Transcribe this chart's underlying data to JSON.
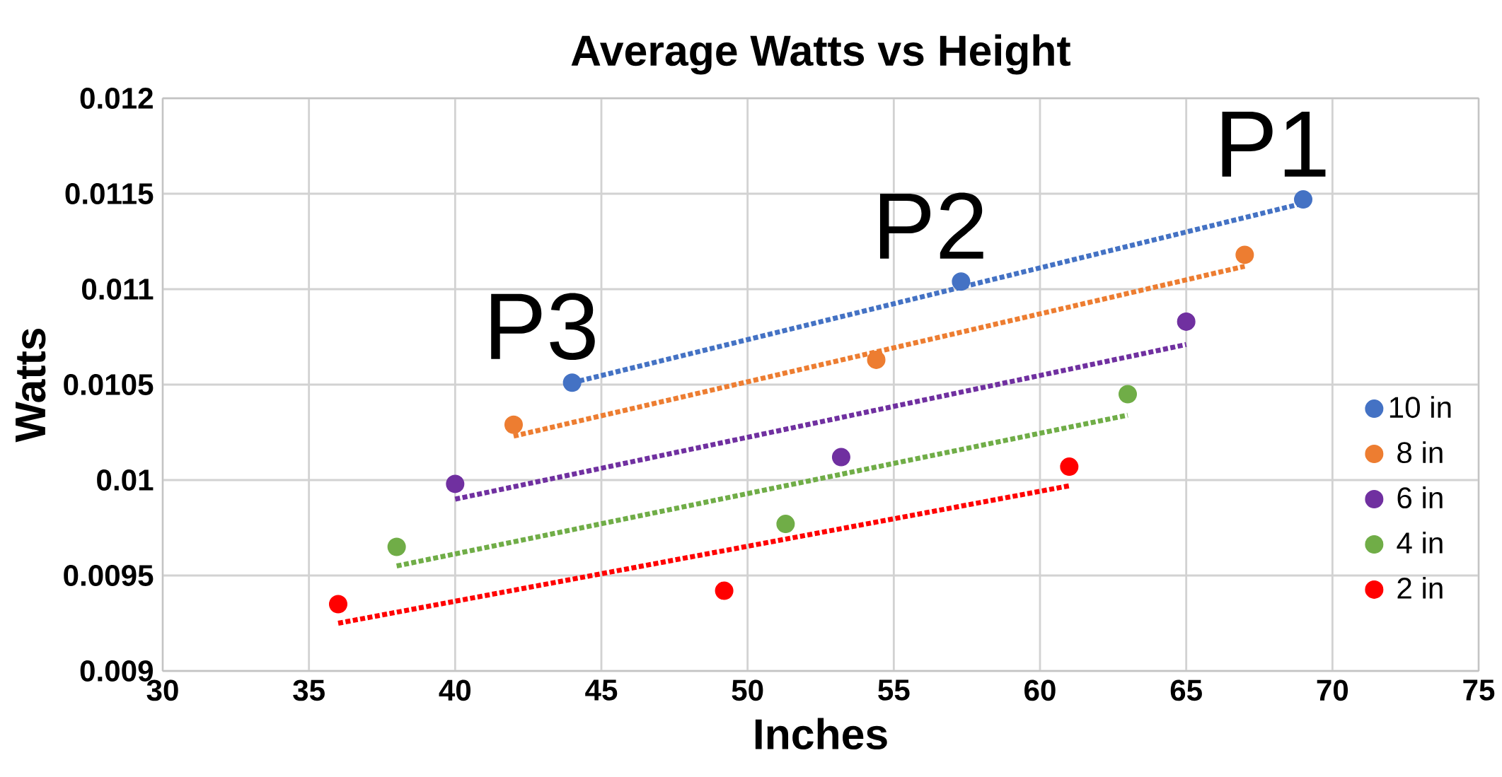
{
  "chart_data": {
    "type": "scatter",
    "title": "Average Watts vs Height",
    "xlabel": "Inches",
    "ylabel": "Watts",
    "xlim": [
      30,
      75
    ],
    "xticks": [
      30,
      35,
      40,
      45,
      50,
      55,
      60,
      65,
      70,
      75
    ],
    "ylim": [
      0.009,
      0.012
    ],
    "yticks": [
      0.009,
      0.0095,
      0.01,
      0.0105,
      0.011,
      0.0115,
      0.012
    ],
    "grid": true,
    "legend": "right",
    "series": [
      {
        "name": "10 in",
        "marker": "circle",
        "color": "#4472c4",
        "x": [
          44,
          57.3,
          69
        ],
        "values": [
          0.01051,
          0.01104,
          0.01147
        ]
      },
      {
        "name": "8 in",
        "marker": "circle",
        "color": "#ed7d31",
        "x": [
          42,
          54.4,
          67
        ],
        "values": [
          0.01029,
          0.01063,
          0.01118
        ]
      },
      {
        "name": "6 in",
        "marker": "circle",
        "color": "#7030a0",
        "x": [
          40,
          53.2,
          65
        ],
        "values": [
          0.00998,
          0.01012,
          0.01083
        ]
      },
      {
        "name": "4 in",
        "marker": "circle",
        "color": "#70ad47",
        "x": [
          38,
          51.3,
          63
        ],
        "values": [
          0.00965,
          0.00977,
          0.01045
        ]
      },
      {
        "name": "2 in",
        "marker": "circle",
        "color": "#ff0000",
        "x": [
          36,
          49.2,
          61
        ],
        "values": [
          0.00935,
          0.00942,
          0.01007
        ]
      },
      {
        "type": "line",
        "line_style": "dotted",
        "marker": "none",
        "color": "#4472c4",
        "x": [
          44,
          69
        ],
        "values": [
          0.01051,
          0.01145
        ]
      },
      {
        "type": "line",
        "line_style": "dotted",
        "marker": "none",
        "color": "#ed7d31",
        "x": [
          42,
          67
        ],
        "values": [
          0.01023,
          0.01112
        ]
      },
      {
        "type": "line",
        "line_style": "dotted",
        "marker": "none",
        "color": "#7030a0",
        "x": [
          40,
          65
        ],
        "values": [
          0.0099,
          0.01071
        ]
      },
      {
        "type": "line",
        "line_style": "dotted",
        "marker": "none",
        "color": "#70ad47",
        "x": [
          38,
          63
        ],
        "values": [
          0.00955,
          0.01034
        ]
      },
      {
        "type": "line",
        "line_style": "dotted",
        "marker": "none",
        "color": "#ff0000",
        "x": [
          36,
          61
        ],
        "values": [
          0.00925,
          0.00997
        ]
      }
    ],
    "annotations": [
      "P1",
      "P2",
      "P3"
    ]
  }
}
